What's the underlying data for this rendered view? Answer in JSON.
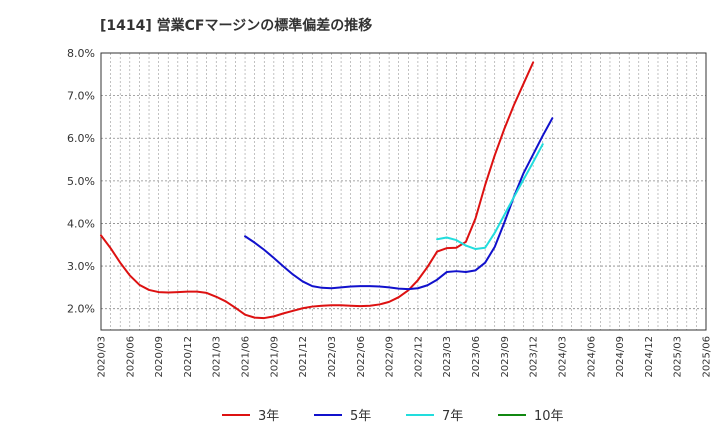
{
  "chart_data": {
    "type": "line",
    "title": "[1414]  営業CFマージンの標準偏差の推移",
    "xlabel": "",
    "ylabel": "",
    "ylim": [
      1.5,
      8.0
    ],
    "y_ticks": [
      2.0,
      3.0,
      4.0,
      5.0,
      6.0,
      7.0,
      8.0
    ],
    "y_tick_labels": [
      "2.0%",
      "3.0%",
      "4.0%",
      "5.0%",
      "6.0%",
      "7.0%",
      "8.0%"
    ],
    "x_tick_labels": [
      "2020/03",
      "2020/06",
      "2020/09",
      "2020/12",
      "2021/03",
      "2021/06",
      "2021/09",
      "2021/12",
      "2022/03",
      "2022/06",
      "2022/09",
      "2022/12",
      "2023/03",
      "2023/06",
      "2023/09",
      "2023/12",
      "2024/03",
      "2024/06",
      "2024/09",
      "2024/12",
      "2025/03",
      "2025/06"
    ],
    "grid": true,
    "legend_position": "bottom",
    "series": [
      {
        "name": "3年",
        "color": "#dd1111",
        "start_index": 0,
        "values": [
          3.72,
          3.42,
          3.08,
          2.78,
          2.56,
          2.44,
          2.39,
          2.38,
          2.39,
          2.4,
          2.4,
          2.37,
          2.28,
          2.17,
          2.02,
          1.86,
          1.79,
          1.78,
          1.82,
          1.89,
          1.95,
          2.01,
          2.05,
          2.07,
          2.08,
          2.08,
          2.07,
          2.06,
          2.07,
          2.1,
          2.16,
          2.27,
          2.43,
          2.67,
          2.98,
          3.34,
          3.42,
          3.43,
          3.57,
          4.12,
          4.9,
          5.6,
          6.22,
          6.78,
          7.28,
          7.78
        ]
      },
      {
        "name": "5年",
        "color": "#1111cc",
        "start_index": 15,
        "values": [
          3.7,
          3.55,
          3.38,
          3.19,
          2.99,
          2.8,
          2.64,
          2.53,
          2.49,
          2.48,
          2.5,
          2.52,
          2.53,
          2.53,
          2.52,
          2.5,
          2.47,
          2.46,
          2.48,
          2.55,
          2.68,
          2.86,
          2.88,
          2.86,
          2.9,
          3.08,
          3.45,
          4.02,
          4.63,
          5.18,
          5.62,
          6.06,
          6.47
        ]
      },
      {
        "name": "7年",
        "color": "#22dddd",
        "start_index": 35,
        "values": [
          3.63,
          3.67,
          3.61,
          3.48,
          3.4,
          3.43,
          3.78,
          4.2,
          4.62,
          5.03,
          5.44,
          5.86
        ]
      },
      {
        "name": "10年",
        "color": "#118811",
        "start_index": 0,
        "values": []
      }
    ]
  }
}
